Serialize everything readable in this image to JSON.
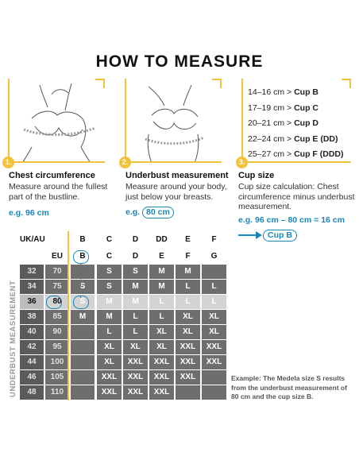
{
  "title": "HOW TO MEASURE",
  "steps": [
    {
      "num": "1.",
      "title": "Chest circumference",
      "desc_lines": [
        "Measure around the fullest",
        "part of the bustline."
      ],
      "example": "e.g. 96 cm"
    },
    {
      "num": "2.",
      "title": "Underbust measurement",
      "desc_lines": [
        "Measure around your body,",
        "just below your breasts."
      ],
      "example_prefix": "e.g.",
      "example_value": "80 cm"
    },
    {
      "num": "3.",
      "title": "Cup size",
      "desc_lines": [
        "Cup size calculation: Chest",
        "circumference minus underbust",
        "measurement."
      ],
      "example": "e.g. 96 cm – 80 cm = 16 cm",
      "result": "Cup B"
    }
  ],
  "cup_table": [
    {
      "range": "14–16 cm > ",
      "cup": "Cup B"
    },
    {
      "range": "17–19 cm > ",
      "cup": "Cup C"
    },
    {
      "range": "20–21 cm > ",
      "cup": "Cup D"
    },
    {
      "range": "22–24 cm > ",
      "cup": "Cup E (DD)"
    },
    {
      "range": "25–27 cm > ",
      "cup": "Cup F (DDD)"
    }
  ],
  "size_chart": {
    "side_label": "UNDERBUST MEASUREMENT",
    "header_uk": [
      "UK/AU",
      "",
      "B",
      "C",
      "D",
      "DD",
      "E",
      "F"
    ],
    "header_eu": [
      "",
      "EU",
      "B",
      "C",
      "D",
      "E",
      "F",
      "G"
    ],
    "rows": [
      [
        "32",
        "70",
        "",
        "S",
        "S",
        "M",
        "M",
        ""
      ],
      [
        "34",
        "75",
        "S",
        "S",
        "M",
        "M",
        "L",
        "L"
      ],
      [
        "36",
        "80",
        "S",
        "M",
        "M",
        "L",
        "L",
        "L"
      ],
      [
        "38",
        "85",
        "M",
        "M",
        "L",
        "L",
        "XL",
        "XL"
      ],
      [
        "40",
        "90",
        "",
        "L",
        "L",
        "XL",
        "XL",
        "XL"
      ],
      [
        "42",
        "95",
        "",
        "XL",
        "XL",
        "XL",
        "XXL",
        "XXL"
      ],
      [
        "44",
        "100",
        "",
        "XL",
        "XXL",
        "XXL",
        "XXL",
        "XXL"
      ],
      [
        "46",
        "105",
        "",
        "XXL",
        "XXL",
        "XXL",
        "XXL",
        ""
      ],
      [
        "48",
        "110",
        "",
        "XXL",
        "XXL",
        "XXL",
        "",
        ""
      ]
    ]
  },
  "example_note": "Example: The Medela size S results from the underbust measurement of 80 cm and the cup size B."
}
